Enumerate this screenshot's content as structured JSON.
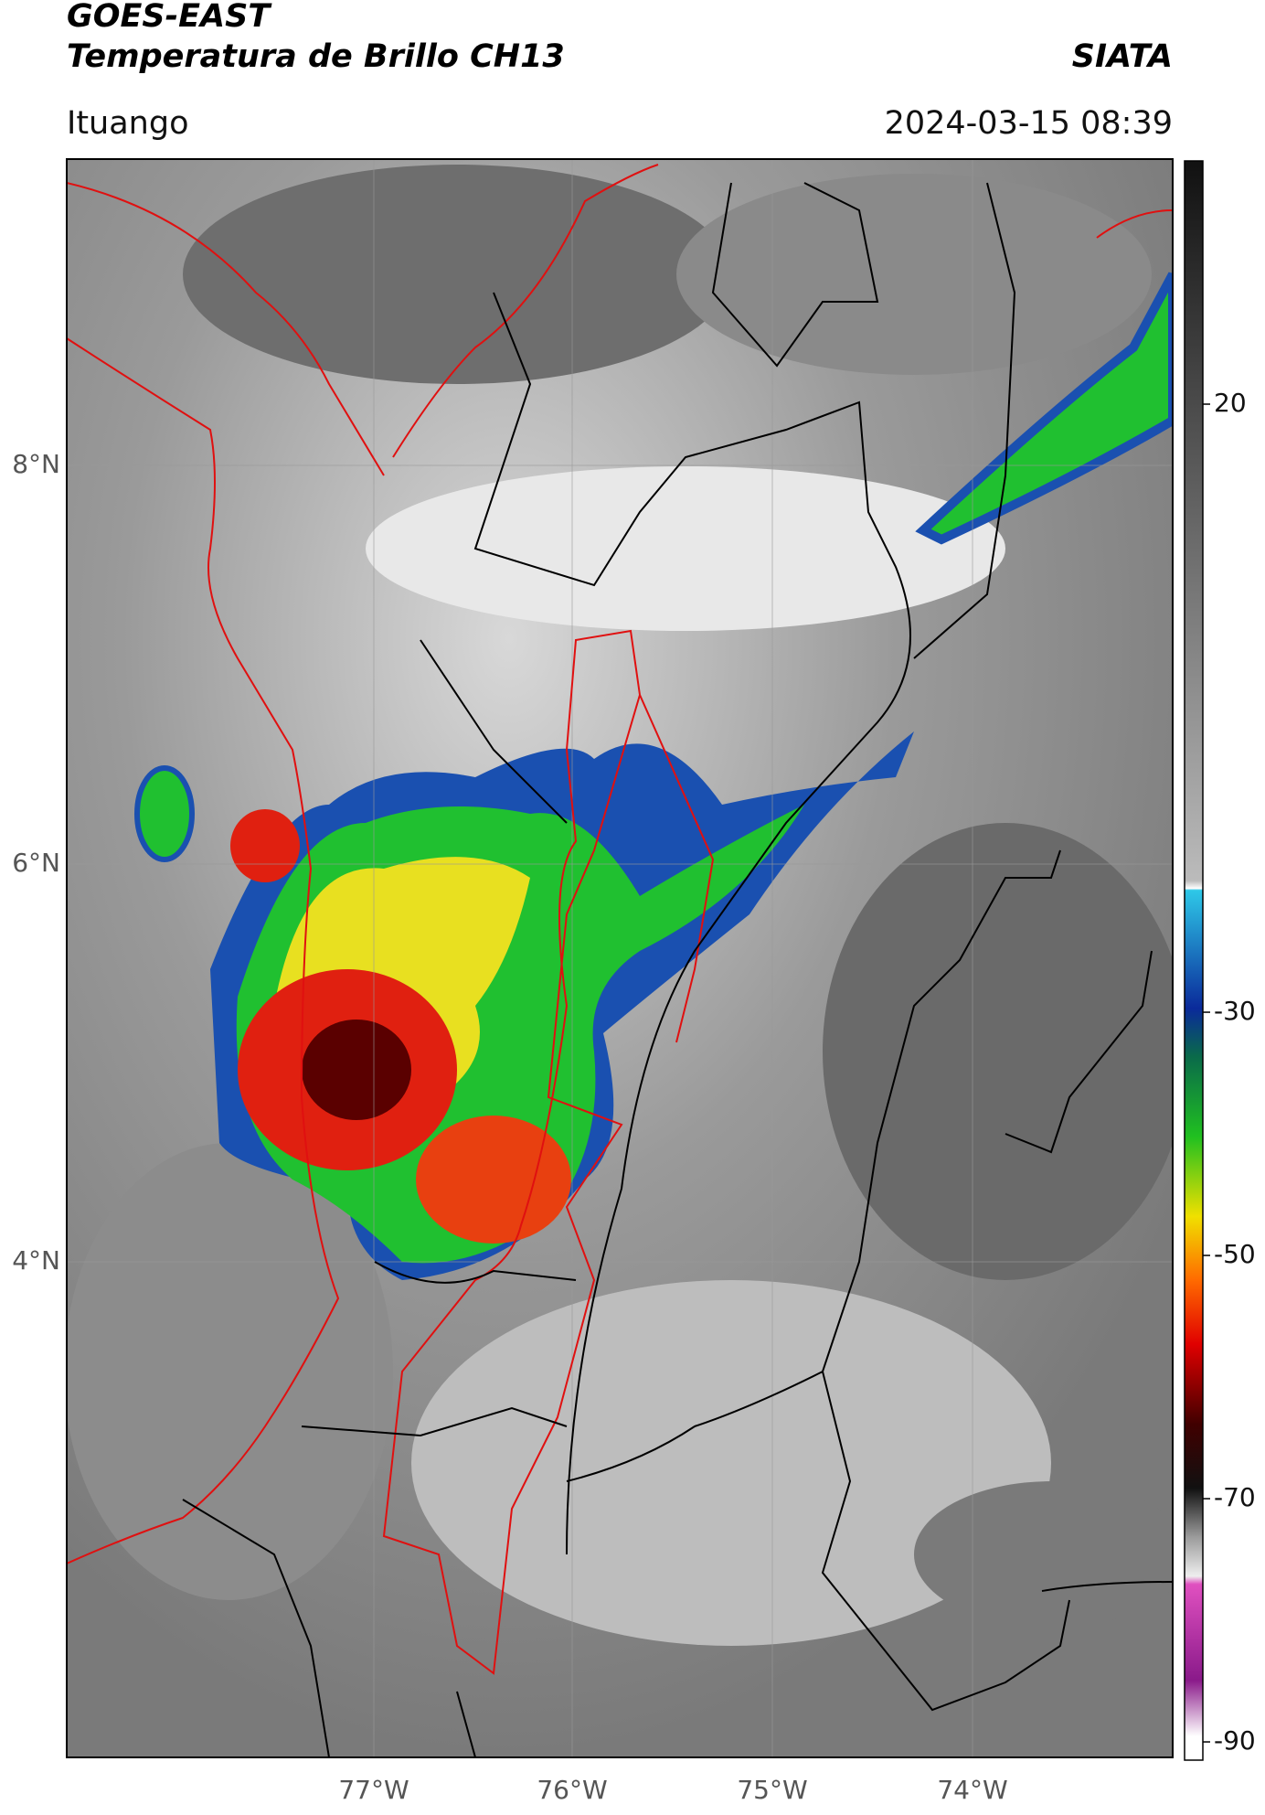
{
  "header": {
    "title_line1": "GOES-EAST",
    "title_line2": "Temperatura de Brillo CH13",
    "brand": "SIATA",
    "location": "Ituango",
    "timestamp": "2024-03-15 08:39"
  },
  "map": {
    "lat_labels": [
      "8°N",
      "6°N",
      "4°N"
    ],
    "lon_labels": [
      "77°W",
      "76°W",
      "75°W",
      "74°W"
    ]
  },
  "colorbar": {
    "lim": [
      40,
      -91.5
    ],
    "ticks": [
      20,
      -30,
      -50,
      -70,
      -90
    ]
  }
}
